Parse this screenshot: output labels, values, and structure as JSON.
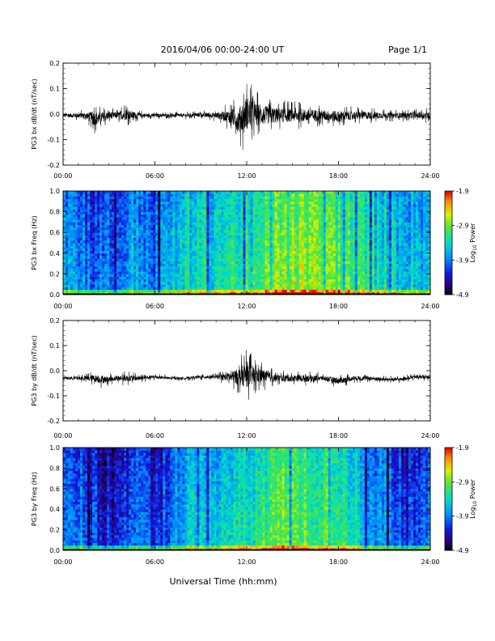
{
  "header": {
    "title": "2016/04/06  00:00-24:00 UT",
    "page": "Page 1/1"
  },
  "xlabel": "Universal Time (hh:mm)",
  "chart_data": [
    {
      "type": "line",
      "ylabel": "PG3 bx dB/dt (nT/sec)",
      "xlim": [
        0,
        24
      ],
      "ylim": [
        -0.2,
        0.2
      ],
      "x_ticks": [
        "00:00",
        "06:00",
        "12:00",
        "18:00",
        "24:00"
      ],
      "y_ticks": [
        "-0.2",
        "-0.1",
        "0.0",
        "0.1",
        "0.2"
      ],
      "envelope": {
        "x_hours": [
          0,
          1.5,
          2,
          2.5,
          3,
          3.5,
          4,
          5,
          6,
          7,
          8,
          9,
          10,
          11,
          11.5,
          12,
          12.5,
          13,
          14,
          15,
          16,
          17,
          18,
          19,
          20,
          21,
          22,
          23,
          24
        ],
        "max": [
          0.01,
          0.02,
          0.045,
          0.03,
          0.03,
          0.02,
          0.045,
          0.015,
          0.01,
          0.01,
          0.01,
          0.015,
          0.02,
          0.05,
          0.09,
          0.15,
          0.1,
          0.08,
          0.06,
          0.05,
          0.05,
          0.04,
          0.04,
          0.03,
          0.03,
          0.02,
          0.02,
          0.02,
          0.03
        ],
        "min": [
          -0.02,
          -0.03,
          -0.08,
          -0.06,
          -0.04,
          -0.03,
          -0.05,
          -0.025,
          -0.02,
          -0.02,
          -0.02,
          -0.02,
          -0.03,
          -0.07,
          -0.14,
          -0.14,
          -0.1,
          -0.09,
          -0.07,
          -0.06,
          -0.06,
          -0.05,
          -0.06,
          -0.04,
          -0.04,
          -0.03,
          -0.03,
          -0.03,
          -0.04
        ]
      }
    },
    {
      "type": "heatmap",
      "ylabel": "PG3 bx Freq (Hz)",
      "xlim": [
        0,
        24
      ],
      "ylim": [
        0,
        1
      ],
      "x_ticks": [
        "00:00",
        "06:00",
        "12:00",
        "18:00",
        "24:00"
      ],
      "y_ticks": [
        "0.0",
        "0.2",
        "0.4",
        "0.6",
        "0.8",
        "1.0"
      ],
      "colorbar": {
        "label": "Log10 Power",
        "label_main": "Log",
        "label_sub": "10",
        "label_tail": " Power",
        "range": [
          -4.9,
          -1.9
        ],
        "ticks": [
          "-1.9",
          "-2.9",
          "-3.9",
          "-4.9"
        ]
      },
      "time_profile_hours": [
        0,
        2,
        3,
        4,
        5,
        6,
        7,
        8,
        9,
        10,
        11,
        12,
        13,
        14,
        15,
        16,
        17,
        18,
        19,
        20,
        21,
        22,
        23,
        24
      ],
      "time_profile_log10_power": [
        -3.6,
        -3.9,
        -3.9,
        -3.8,
        -3.6,
        -3.9,
        -3.6,
        -3.3,
        -3.3,
        -3.3,
        -3.2,
        -3.2,
        -3.1,
        -2.7,
        -2.7,
        -2.8,
        -2.8,
        -2.9,
        -3.1,
        -3.2,
        -3.3,
        -3.4,
        -3.5,
        -3.5
      ]
    },
    {
      "type": "line",
      "ylabel": "PG3 by dB/dt (nT/sec)",
      "xlim": [
        0,
        24
      ],
      "ylim": [
        -0.2,
        0.2
      ],
      "x_ticks": [
        "00:00",
        "06:00",
        "12:00",
        "18:00",
        "24:00"
      ],
      "y_ticks": [
        "-0.2",
        "-0.1",
        "0.0",
        "0.1",
        "0.2"
      ],
      "envelope": {
        "x_hours": [
          0,
          1.5,
          2,
          2.5,
          3,
          3.5,
          4,
          5,
          6,
          7,
          8,
          9,
          10,
          11,
          11.5,
          12,
          12.5,
          13,
          14,
          15,
          16,
          17,
          18,
          19,
          20,
          21,
          22,
          23,
          24
        ],
        "max": [
          -0.02,
          -0.01,
          0.0,
          0.0,
          -0.01,
          -0.01,
          0.0,
          -0.01,
          -0.01,
          -0.02,
          -0.02,
          -0.01,
          -0.01,
          0.02,
          0.05,
          0.1,
          0.06,
          0.04,
          0.0,
          0.0,
          0.0,
          -0.01,
          -0.01,
          -0.01,
          -0.01,
          -0.02,
          -0.02,
          -0.01,
          -0.01
        ],
        "min": [
          -0.04,
          -0.05,
          -0.06,
          -0.07,
          -0.06,
          -0.05,
          -0.06,
          -0.05,
          -0.04,
          -0.04,
          -0.04,
          -0.04,
          -0.04,
          -0.07,
          -0.1,
          -0.13,
          -0.1,
          -0.08,
          -0.06,
          -0.06,
          -0.06,
          -0.05,
          -0.07,
          -0.05,
          -0.05,
          -0.05,
          -0.05,
          -0.04,
          -0.04
        ]
      }
    },
    {
      "type": "heatmap",
      "ylabel": "PG3 by Freq (Hz)",
      "xlim": [
        0,
        24
      ],
      "ylim": [
        0,
        1
      ],
      "x_ticks": [
        "00:00",
        "06:00",
        "12:00",
        "18:00",
        "24:00"
      ],
      "y_ticks": [
        "0.0",
        "0.2",
        "0.4",
        "0.6",
        "0.8",
        "1.0"
      ],
      "colorbar": {
        "label": "Log10 Power",
        "label_main": "Log",
        "label_sub": "10",
        "label_tail": " Power",
        "range": [
          -4.9,
          -1.9
        ],
        "ticks": [
          "-1.9",
          "-2.9",
          "-3.9",
          "-4.9"
        ]
      },
      "time_profile_hours": [
        0,
        2,
        3,
        4,
        5,
        6,
        7,
        8,
        9,
        10,
        11,
        12,
        13,
        14,
        15,
        16,
        17,
        18,
        19,
        20,
        21,
        22,
        23,
        24
      ],
      "time_profile_log10_power": [
        -3.7,
        -4.1,
        -4.3,
        -4.1,
        -3.9,
        -4.3,
        -3.8,
        -3.5,
        -3.5,
        -3.4,
        -3.4,
        -3.3,
        -3.1,
        -2.9,
        -2.9,
        -3.0,
        -3.0,
        -3.0,
        -3.3,
        -3.6,
        -3.8,
        -4.1,
        -4.1,
        -4.0
      ]
    }
  ]
}
